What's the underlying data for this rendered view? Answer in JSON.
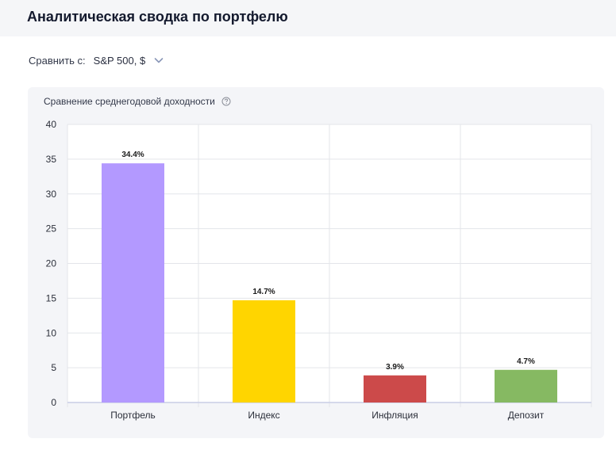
{
  "header": {
    "title": "Аналитическая сводка по портфелю"
  },
  "compare": {
    "label": "Сравнить с:",
    "selected": "S&P 500, $",
    "icon": "chevron-down-icon"
  },
  "card": {
    "title": "Сравнение среднегодовой доходности",
    "help_icon": "help-circle-icon"
  },
  "chart_data": {
    "type": "bar",
    "title": "Сравнение среднегодовой доходности",
    "xlabel": "",
    "ylabel": "",
    "categories": [
      "Портфель",
      "Индекс",
      "Инфляция",
      "Депозит"
    ],
    "values": [
      34.4,
      14.7,
      3.9,
      4.7
    ],
    "value_labels": [
      "34.4%",
      "14.7%",
      "3.9%",
      "4.7%"
    ],
    "colors": [
      "#b399ff",
      "#ffd500",
      "#cc4a4a",
      "#86b962"
    ],
    "ylim": [
      0,
      40
    ],
    "yticks": [
      "0",
      "5",
      "10",
      "15",
      "20",
      "25",
      "30",
      "35",
      "40"
    ],
    "grid": true
  }
}
